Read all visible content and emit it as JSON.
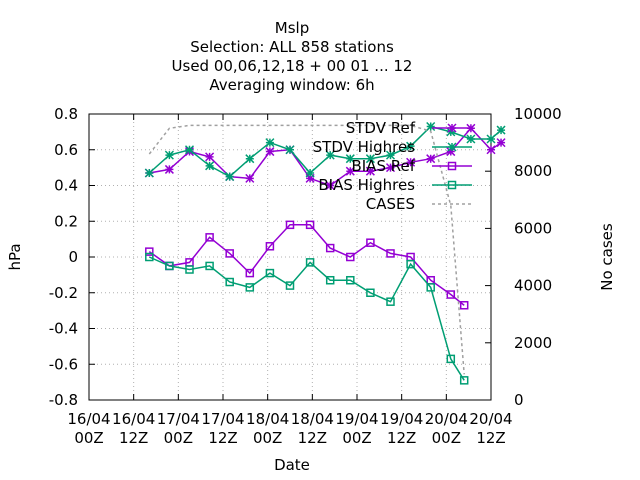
{
  "title_lines": [
    "Mslp",
    "Selection: ALL    858 stations",
    "Used  00,06,12,18 + 00 01 ... 12",
    "Averaging window:  6h"
  ],
  "colors": {
    "ref": "#9400d3",
    "highres": "#009e73",
    "cases": "#a0a0a0",
    "grid": "#b0b0b0"
  },
  "chart_data": {
    "type": "line",
    "xlabel": "Date",
    "ylabel": "hPa",
    "y2label": "No cases",
    "ylim": [
      -0.8,
      0.8
    ],
    "y2lim": [
      0,
      10000
    ],
    "yticks": [
      "0.8",
      "0.6",
      "0.4",
      "0.2",
      "0",
      "-0.2",
      "-0.4",
      "-0.6",
      "-0.8"
    ],
    "y2ticks": [
      "10000",
      "8000",
      "6000",
      "4000",
      "2000",
      "0"
    ],
    "xticks": [
      {
        "l1": "16/04",
        "l2": "00Z"
      },
      {
        "l1": "16/04",
        "l2": "12Z"
      },
      {
        "l1": "17/04",
        "l2": "00Z"
      },
      {
        "l1": "17/04",
        "l2": "12Z"
      },
      {
        "l1": "18/04",
        "l2": "00Z"
      },
      {
        "l1": "18/04",
        "l2": "12Z"
      },
      {
        "l1": "19/04",
        "l2": "00Z"
      },
      {
        "l1": "19/04",
        "l2": "12Z"
      },
      {
        "l1": "20/04",
        "l2": "00Z"
      },
      {
        "l1": "20/04",
        "l2": "12Z"
      }
    ],
    "x_hours": [
      18,
      24,
      30,
      36,
      42,
      48,
      54,
      60,
      66,
      72,
      78,
      84,
      90,
      96,
      102,
      108,
      114,
      120,
      123
    ],
    "series": [
      {
        "name": "STDV Ref",
        "color_key": "ref",
        "marker": "star",
        "axis": "y",
        "values": [
          0.47,
          0.49,
          0.59,
          0.56,
          0.45,
          0.44,
          0.59,
          0.6,
          0.44,
          0.4,
          0.48,
          0.48,
          0.5,
          0.53,
          0.55,
          0.59,
          0.72,
          0.6,
          0.64
        ]
      },
      {
        "name": "STDV Highres",
        "color_key": "highres",
        "marker": "star",
        "axis": "y",
        "values": [
          0.47,
          0.57,
          0.6,
          0.51,
          0.45,
          0.55,
          0.64,
          0.6,
          0.47,
          0.57,
          0.55,
          0.55,
          0.57,
          0.62,
          0.73,
          0.7,
          0.66,
          0.66,
          0.71
        ]
      },
      {
        "name": "BIAS Ref",
        "color_key": "ref",
        "marker": "square",
        "axis": "y",
        "values": [
          0.03,
          -0.05,
          -0.03,
          0.11,
          0.02,
          -0.09,
          0.06,
          0.18,
          0.18,
          0.05,
          0.0,
          0.08,
          0.02,
          0.0,
          -0.13,
          -0.21,
          -0.27,
          null,
          null
        ]
      },
      {
        "name": "BIAS Highres",
        "color_key": "highres",
        "marker": "square",
        "axis": "y",
        "values": [
          0.0,
          -0.05,
          -0.07,
          -0.05,
          -0.14,
          -0.17,
          -0.09,
          -0.16,
          -0.03,
          -0.13,
          -0.13,
          -0.2,
          -0.25,
          -0.04,
          -0.17,
          -0.57,
          -0.69,
          null,
          null
        ]
      },
      {
        "name": "CASES",
        "color_key": "cases",
        "marker": "none",
        "axis": "y2",
        "dashed": true,
        "values": [
          8600,
          9500,
          9600,
          9600,
          9600,
          9600,
          9600,
          9600,
          9600,
          9600,
          9600,
          9600,
          9600,
          9600,
          9400,
          6800,
          900,
          null,
          null
        ]
      }
    ],
    "series_x_override": {
      "BIAS Ref": [
        18,
        24,
        30,
        36,
        42,
        48,
        54,
        60,
        66,
        72,
        78,
        84,
        90,
        96,
        102,
        108,
        112
      ],
      "BIAS Highres": [
        18,
        24,
        30,
        36,
        42,
        48,
        54,
        60,
        66,
        72,
        78,
        84,
        90,
        96,
        102,
        108,
        112
      ],
      "CASES": [
        18,
        24,
        30,
        36,
        42,
        48,
        54,
        60,
        66,
        72,
        78,
        84,
        90,
        96,
        102,
        108,
        112
      ]
    },
    "grid": true,
    "legend_position": "top-right"
  }
}
